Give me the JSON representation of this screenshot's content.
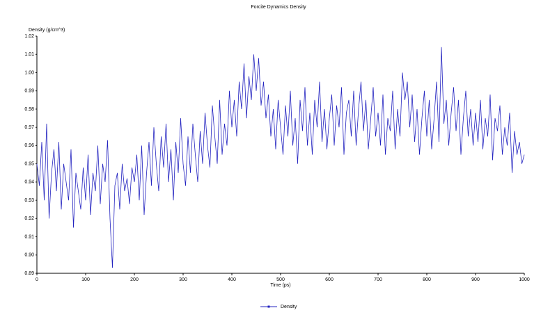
{
  "chart_data": {
    "type": "line",
    "title": "Forcite Dynamics Density",
    "y_label": "Density (g/cm^3)",
    "x_label": "Time (ps)",
    "legend": "bottom",
    "xlim": [
      0,
      1000
    ],
    "xticks": [
      0,
      100,
      200,
      300,
      400,
      500,
      600,
      700,
      800,
      900,
      1000
    ],
    "ylim": [
      0.89,
      1.02
    ],
    "yticks": [
      0.89,
      {
        "value": 0.9,
        "label": "0.90"
      },
      0.91,
      0.92,
      0.93,
      0.94,
      0.95,
      0.96,
      0.97,
      0.98,
      0.99,
      {
        "value": 1.0,
        "label": "1.00"
      },
      1.01,
      1.02
    ],
    "x": [
      0,
      5,
      10,
      15,
      20,
      25,
      30,
      35,
      40,
      45,
      50,
      55,
      60,
      65,
      70,
      75,
      80,
      85,
      90,
      95,
      100,
      105,
      110,
      115,
      120,
      125,
      130,
      135,
      140,
      145,
      150,
      155,
      160,
      165,
      170,
      175,
      180,
      185,
      190,
      195,
      200,
      205,
      210,
      215,
      220,
      225,
      230,
      235,
      240,
      245,
      250,
      255,
      260,
      265,
      270,
      275,
      280,
      285,
      290,
      295,
      300,
      305,
      310,
      315,
      320,
      325,
      330,
      335,
      340,
      345,
      350,
      355,
      360,
      365,
      370,
      375,
      380,
      385,
      390,
      395,
      400,
      405,
      410,
      415,
      420,
      425,
      430,
      435,
      440,
      445,
      450,
      455,
      460,
      465,
      470,
      475,
      480,
      485,
      490,
      495,
      500,
      505,
      510,
      515,
      520,
      525,
      530,
      535,
      540,
      545,
      550,
      555,
      560,
      565,
      570,
      575,
      580,
      585,
      590,
      595,
      600,
      605,
      610,
      615,
      620,
      625,
      630,
      635,
      640,
      645,
      650,
      655,
      660,
      665,
      670,
      675,
      680,
      685,
      690,
      695,
      700,
      705,
      710,
      715,
      720,
      725,
      730,
      735,
      740,
      745,
      750,
      755,
      760,
      765,
      770,
      775,
      780,
      785,
      790,
      795,
      800,
      805,
      810,
      815,
      820,
      825,
      830,
      835,
      840,
      845,
      850,
      855,
      860,
      865,
      870,
      875,
      880,
      885,
      890,
      895,
      900,
      905,
      910,
      915,
      920,
      925,
      930,
      935,
      940,
      945,
      950,
      955,
      960,
      965,
      970,
      975,
      980,
      985,
      990,
      995,
      1000
    ],
    "series": [
      {
        "name": "Density",
        "color": "#2323c0",
        "values": [
          0.95,
          0.938,
          0.962,
          0.93,
          0.972,
          0.92,
          0.945,
          0.958,
          0.935,
          0.962,
          0.925,
          0.95,
          0.94,
          0.93,
          0.958,
          0.915,
          0.945,
          0.935,
          0.925,
          0.948,
          0.93,
          0.955,
          0.922,
          0.945,
          0.935,
          0.96,
          0.928,
          0.95,
          0.94,
          0.963,
          0.92,
          0.893,
          0.938,
          0.945,
          0.925,
          0.95,
          0.935,
          0.942,
          0.928,
          0.948,
          0.94,
          0.955,
          0.93,
          0.96,
          0.922,
          0.945,
          0.962,
          0.938,
          0.97,
          0.95,
          0.935,
          0.965,
          0.948,
          0.972,
          0.94,
          0.958,
          0.93,
          0.962,
          0.945,
          0.975,
          0.95,
          0.938,
          0.965,
          0.945,
          0.972,
          0.955,
          0.94,
          0.968,
          0.95,
          0.978,
          0.96,
          0.948,
          0.982,
          0.965,
          0.95,
          0.985,
          0.955,
          0.972,
          0.96,
          0.99,
          0.97,
          0.985,
          0.965,
          0.995,
          0.98,
          1.005,
          0.975,
          0.998,
          0.985,
          1.01,
          0.99,
          1.008,
          0.982,
          0.995,
          0.975,
          0.988,
          0.965,
          0.98,
          0.958,
          0.985,
          0.97,
          0.955,
          0.982,
          0.965,
          0.99,
          0.96,
          0.975,
          0.95,
          0.985,
          0.968,
          0.992,
          0.96,
          0.978,
          0.955,
          0.985,
          0.97,
          0.995,
          0.962,
          0.98,
          0.958,
          0.975,
          0.988,
          0.96,
          0.982,
          0.97,
          0.992,
          0.955,
          0.978,
          0.985,
          0.965,
          0.99,
          0.96,
          0.98,
          0.995,
          0.968,
          0.985,
          0.958,
          0.975,
          0.992,
          0.965,
          0.978,
          0.96,
          0.988,
          0.955,
          0.975,
          0.968,
          0.99,
          0.958,
          0.98,
          0.965,
          1.0,
          0.985,
          0.995,
          0.97,
          0.988,
          0.962,
          0.98,
          0.955,
          0.975,
          0.99,
          0.965,
          0.985,
          0.958,
          0.975,
          0.995,
          0.962,
          1.014,
          0.972,
          0.985,
          0.96,
          0.978,
          0.992,
          0.968,
          0.985,
          0.955,
          0.975,
          0.99,
          0.965,
          0.98,
          0.96,
          0.978,
          0.962,
          0.985,
          0.958,
          0.975,
          0.965,
          0.988,
          0.952,
          0.975,
          0.968,
          0.982,
          0.955,
          0.97,
          0.96,
          0.978,
          0.945,
          0.968,
          0.955,
          0.962,
          0.95,
          0.955
        ]
      }
    ]
  }
}
